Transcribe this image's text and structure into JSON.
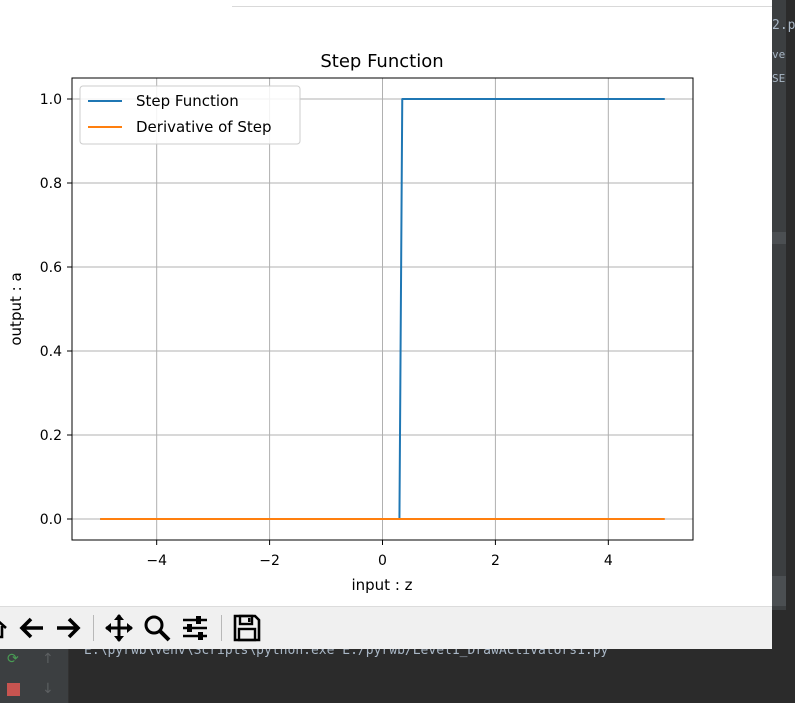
{
  "ide": {
    "right_fragments": [
      "2.p",
      "ve",
      "SE"
    ],
    "console_line": "E:\\pyrwb\\venv\\Scripts\\python.exe E:/pyrwb/Level1_DrawActivators1.py",
    "rerun_icon": "rerun-icon",
    "stop_icon": "stop-icon",
    "up_icon": "arrow-up-icon",
    "down_icon": "arrow-down-icon",
    "colors": {
      "background": "#2b2b2b",
      "text": "#a9b7c6",
      "stop": "#c75450",
      "rerun": "#499c54"
    }
  },
  "toolbar": {
    "icons": [
      "home-icon",
      "back-arrow-icon",
      "forward-arrow-icon",
      "pan-icon",
      "zoom-icon",
      "configure-subplots-icon",
      "save-icon"
    ]
  },
  "chart_data": {
    "type": "line",
    "title": "Step Function",
    "xlabel": "input : z",
    "ylabel": "output : a",
    "xlim": [
      -5.5,
      5.5
    ],
    "ylim": [
      -0.05,
      1.05
    ],
    "xticks": [
      -4,
      -2,
      0,
      2,
      4
    ],
    "xtick_labels": [
      "−4",
      "−2",
      "0",
      "2",
      "4"
    ],
    "yticks": [
      0.0,
      0.2,
      0.4,
      0.6,
      0.8,
      1.0
    ],
    "ytick_labels": [
      "0.0",
      "0.2",
      "0.4",
      "0.6",
      "0.8",
      "1.0"
    ],
    "grid": true,
    "legend_position": "upper-left",
    "series": [
      {
        "name": "Step Function",
        "color": "#1f77b4",
        "x": [
          -5.0,
          0.3,
          0.35,
          5.0
        ],
        "y": [
          0.0,
          0.0,
          1.0,
          1.0
        ]
      },
      {
        "name": "Derivative of Step",
        "color": "#ff7f0e",
        "x": [
          -5.0,
          5.0
        ],
        "y": [
          0.0,
          0.0
        ]
      }
    ]
  }
}
